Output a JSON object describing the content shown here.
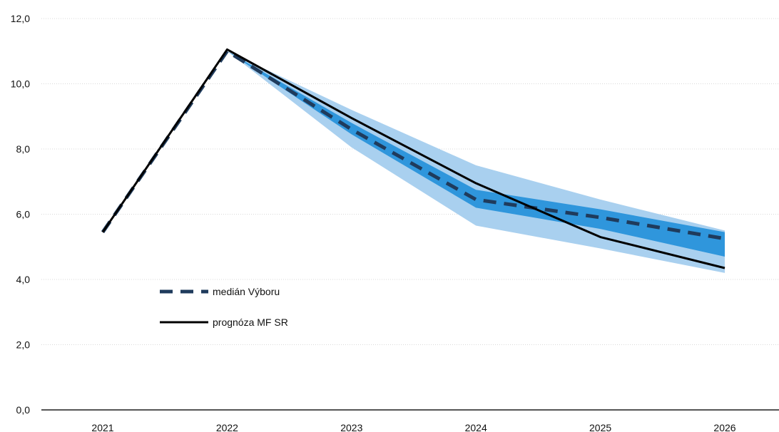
{
  "chart_data": {
    "type": "line",
    "title": "",
    "xlabel": "",
    "ylabel": "",
    "categories": [
      "2021",
      "2022",
      "2023",
      "2024",
      "2025",
      "2026"
    ],
    "ylim": [
      0,
      12
    ],
    "yticks": [
      0,
      2,
      4,
      6,
      8,
      10,
      12
    ],
    "ytick_labels": [
      "0,0",
      "2,0",
      "4,0",
      "6,0",
      "8,0",
      "10,0",
      "12,0"
    ],
    "grid": true,
    "legend_position": "center-left",
    "series": [
      {
        "name": "medián Výboru",
        "style": "dashed",
        "color": "#1f3b5c",
        "values": [
          5.45,
          11.0,
          8.6,
          6.45,
          5.9,
          5.25
        ]
      },
      {
        "name": "prognóza MF SR",
        "style": "solid",
        "color": "#000000",
        "values": [
          5.45,
          11.05,
          8.95,
          6.95,
          5.3,
          4.35
        ]
      }
    ],
    "bands": [
      {
        "kind": "outer",
        "color": "#a9d0ef",
        "lower": [
          null,
          11.0,
          8.05,
          5.65,
          4.95,
          4.2
        ],
        "upper": [
          null,
          11.0,
          9.2,
          7.5,
          6.45,
          5.5
        ]
      },
      {
        "kind": "inner",
        "color": "#2f96dc",
        "lower": [
          null,
          11.0,
          8.45,
          6.2,
          5.55,
          4.7
        ],
        "upper": [
          null,
          11.0,
          8.8,
          6.75,
          6.15,
          5.45
        ]
      }
    ]
  }
}
